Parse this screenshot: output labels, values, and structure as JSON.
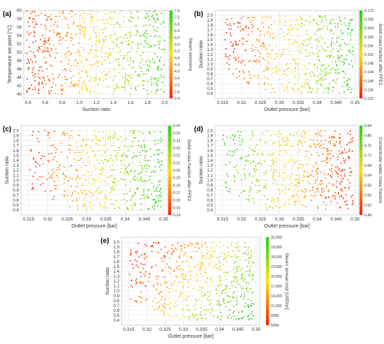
{
  "colors": {
    "low": "#ff1a00",
    "mid": "#ffe000",
    "high": "#1ad21a",
    "grid": "#e4e4e4",
    "text": "#333333"
  },
  "chart_data": [
    {
      "type": "scatter",
      "panel": "(a)",
      "xlabel": "Suction ratio",
      "ylabel": "Temperature set point [°C]",
      "colorbar_label": "Steam economy",
      "xlim": [
        0.35,
        2.05
      ],
      "ylim": [
        39,
        60
      ],
      "xticks": [
        0.4,
        0.6,
        0.8,
        1.0,
        1.2,
        1.4,
        1.6,
        1.8,
        2.0
      ],
      "xtick_labels": [
        "0.4",
        "0.6",
        "0.8",
        "1.0",
        "1.2",
        "1.4",
        "1.6",
        "1.8",
        "2.0"
      ],
      "yticks": [
        40,
        42,
        44,
        46,
        48,
        50,
        52,
        54,
        56,
        58,
        60
      ],
      "ytick_labels": [
        "40",
        "42",
        "44",
        "46",
        "48",
        "50",
        "52",
        "54",
        "56",
        "58",
        "60"
      ],
      "clim": [
        2.4,
        7.6
      ],
      "cticks": [
        2.4,
        2.8,
        3.2,
        3.6,
        4.0,
        4.4,
        4.8,
        5.2,
        5.6,
        6.0,
        6.4,
        6.8,
        7.2,
        7.6
      ],
      "ctick_labels": [
        "2.4",
        "2.8",
        "3.2",
        "3.6",
        "4.0",
        "4.4",
        "4.8",
        "5.2",
        "5.6",
        "6.0",
        "6.4",
        "6.8",
        "7.2",
        "7.6"
      ],
      "color_trend": "increases with suction ratio",
      "n_points": 700
    },
    {
      "type": "scatter",
      "panel": "(b)",
      "xlabel": "Outlet pressure [bar]",
      "ylabel": "Suction ratio",
      "colorbar_label": "Solid mass fraction after FFE1",
      "xlim": [
        0.313,
        0.351
      ],
      "ylim": [
        0.3,
        2.1
      ],
      "xticks": [
        0.315,
        0.32,
        0.325,
        0.33,
        0.335,
        0.34,
        0.345,
        0.35
      ],
      "xtick_labels": [
        "0.315",
        "0.32",
        "0.325",
        "0.33",
        "0.335",
        "0.34",
        "0.345",
        "0.35"
      ],
      "yticks": [
        0.4,
        0.5,
        0.6,
        0.7,
        0.8,
        0.9,
        1.0,
        1.1,
        1.2,
        1.3,
        1.4,
        1.5,
        1.6,
        1.7,
        1.8,
        1.9,
        2.0
      ],
      "ytick_labels": [
        "0.4",
        "0.5",
        "0.6",
        "0.7",
        "0.8",
        "0.9",
        "1.0",
        "1.1",
        "1.2",
        "1.3",
        "1.4",
        "1.5",
        "1.6",
        "1.7",
        "1.8",
        "1.9",
        "2.0"
      ],
      "clim": [
        0.132,
        0.172
      ],
      "cticks": [
        0.132,
        0.136,
        0.14,
        0.144,
        0.148,
        0.152,
        0.156,
        0.16,
        0.164,
        0.168,
        0.172
      ],
      "ctick_labels": [
        "0.132",
        "0.136",
        "0.140",
        "0.144",
        "0.148",
        "0.152",
        "0.156",
        "0.160",
        "0.164",
        "0.168",
        "0.172"
      ],
      "color_trend": "increases with outlet pressure",
      "n_points": 560
    },
    {
      "type": "scatter",
      "panel": "(c)",
      "xlabel": "Outlet pressure [bar]",
      "ylabel": "Suction ratio",
      "colorbar_label": "Solid mass fraction after FFE2",
      "xlim": [
        0.313,
        0.351
      ],
      "ylim": [
        0.3,
        2.1
      ],
      "xticks": [
        0.315,
        0.32,
        0.325,
        0.33,
        0.335,
        0.34,
        0.345,
        0.35
      ],
      "xtick_labels": [
        "0.315",
        "0.32",
        "0.325",
        "0.33",
        "0.335",
        "0.34",
        "0.345",
        "0.35"
      ],
      "yticks": [
        0.4,
        0.5,
        0.6,
        0.7,
        0.8,
        0.9,
        1.0,
        1.1,
        1.2,
        1.3,
        1.4,
        1.5,
        1.6,
        1.7,
        1.8,
        1.9,
        2.0
      ],
      "ytick_labels": [
        "0.4",
        "0.5",
        "0.6",
        "0.7",
        "0.8",
        "0.9",
        "1.0",
        "1.1",
        "1.2",
        "1.3",
        "1.4",
        "1.5",
        "1.6",
        "1.7",
        "1.8",
        "1.9",
        "2.0"
      ],
      "clim": [
        0.14,
        0.26
      ],
      "cticks": [
        0.14,
        0.15,
        0.16,
        0.17,
        0.18,
        0.19,
        0.2,
        0.21,
        0.22,
        0.23,
        0.24,
        0.25,
        0.26
      ],
      "ctick_labels": [
        "0.14",
        "0.15",
        "0.16",
        "0.17",
        "0.18",
        "0.19",
        "0.20",
        "0.21",
        "0.22",
        "0.23",
        "0.24",
        "0.25",
        "0.26"
      ],
      "color_trend": "increases with outlet pressure",
      "n_points": 560
    },
    {
      "type": "scatter",
      "panel": "(d)",
      "xlabel": "Outlet pressure [bar]",
      "ylabel": "Suction ratio",
      "colorbar_label": "Concentrate water mass fraction",
      "xlim": [
        0.313,
        0.351
      ],
      "ylim": [
        0.3,
        2.1
      ],
      "xticks": [
        0.315,
        0.32,
        0.325,
        0.33,
        0.335,
        0.34,
        0.345,
        0.35
      ],
      "xtick_labels": [
        "0.315",
        "0.32",
        "0.325",
        "0.33",
        "0.335",
        "0.34",
        "0.345",
        "0.35"
      ],
      "yticks": [
        0.4,
        0.5,
        0.6,
        0.7,
        0.8,
        0.9,
        1.0,
        1.1,
        1.2,
        1.3,
        1.4,
        1.5,
        1.6,
        1.7,
        1.8,
        1.9,
        2.0
      ],
      "ytick_labels": [
        "0.4",
        "0.5",
        "0.6",
        "0.7",
        "0.8",
        "0.9",
        "1.0",
        "1.1",
        "1.2",
        "1.3",
        "1.4",
        "1.5",
        "1.6",
        "1.7",
        "1.8",
        "1.9",
        "2.0"
      ],
      "clim": [
        0.48,
        0.84
      ],
      "cticks": [
        0.48,
        0.52,
        0.56,
        0.6,
        0.64,
        0.68,
        0.72,
        0.76,
        0.8,
        0.84
      ],
      "ctick_labels": [
        "0.48",
        "0.52",
        "0.56",
        "0.60",
        "0.64",
        "0.68",
        "0.72",
        "0.76",
        "0.80",
        "0.84"
      ],
      "color_trend": "decreases with outlet pressure",
      "n_points": 560
    },
    {
      "type": "scatter",
      "panel": "(e)",
      "xlabel": "Outlet pressure [bar]",
      "ylabel": "Suction ratio",
      "colorbar_label": "Steam annual cost [USD/yr]",
      "xlim": [
        0.313,
        0.351
      ],
      "ylim": [
        0.3,
        2.1
      ],
      "xticks": [
        0.315,
        0.32,
        0.325,
        0.33,
        0.335,
        0.34,
        0.345,
        0.35
      ],
      "xtick_labels": [
        "0.315",
        "0.32",
        "0.325",
        "0.33",
        "0.335",
        "0.34",
        "0.345",
        "0.35"
      ],
      "yticks": [
        0.4,
        0.5,
        0.6,
        0.7,
        0.8,
        0.9,
        1.0,
        1.1,
        1.2,
        1.3,
        1.4,
        1.5,
        1.6,
        1.7,
        1.8,
        1.9,
        2.0
      ],
      "ytick_labels": [
        "0.4",
        "0.5",
        "0.6",
        "0.7",
        "0.8",
        "0.9",
        "1.0",
        "1.1",
        "1.2",
        "1.3",
        "1.4",
        "1.5",
        "1.6",
        "1.7",
        "1.8",
        "1.9",
        "2.0"
      ],
      "clim": [
        5000,
        32000
      ],
      "cticks": [
        5000,
        8000,
        11000,
        14000,
        17000,
        20000,
        23000,
        26000,
        29000,
        32000
      ],
      "ctick_labels": [
        "5000",
        "8000",
        "11,000",
        "14,000",
        "17,000",
        "20,000",
        "23,000",
        "26,000",
        "29,000",
        "32,000"
      ],
      "color_trend": "increases with outlet pressure and decreases with suction ratio",
      "n_points": 560
    }
  ]
}
